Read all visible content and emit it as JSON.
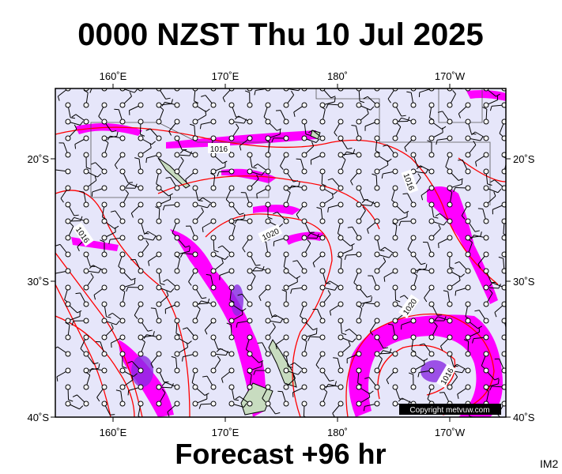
{
  "header": {
    "title": "0000 NZST Thu 10 Jul 2025"
  },
  "map": {
    "lon_labels": [
      "160˚E",
      "170˚E",
      "180˚",
      "170˚W"
    ],
    "lat_labels": [
      "20˚S",
      "30˚S",
      "40˚S"
    ],
    "isobar_labels": [
      "1016",
      "1016",
      "1016",
      "1020",
      "1020",
      "1016"
    ],
    "copyright": "Copyright metvuw.com"
  },
  "footer": {
    "forecast": "Forecast +96 hr",
    "code": "IM2"
  }
}
